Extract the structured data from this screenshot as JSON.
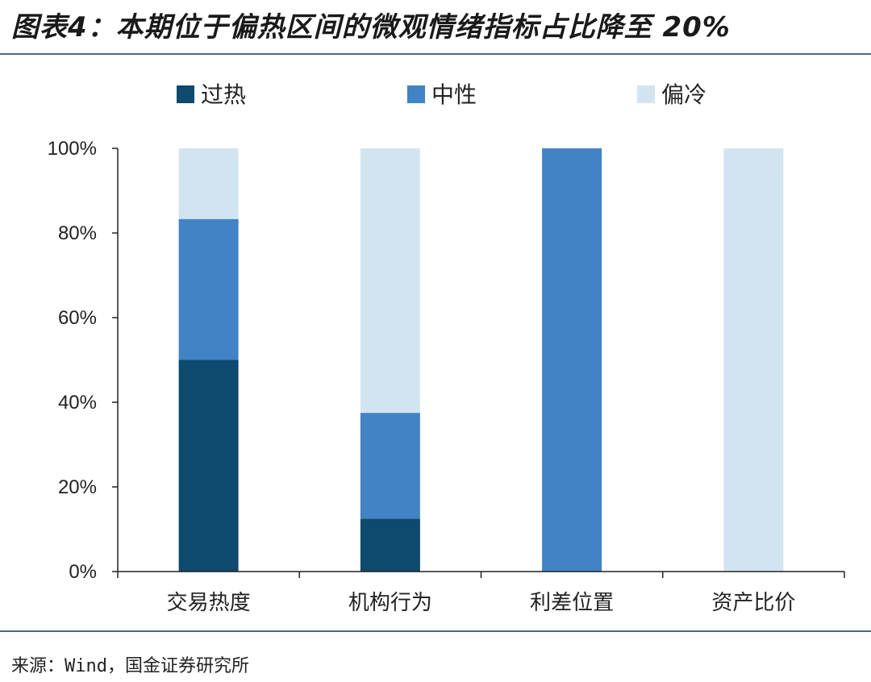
{
  "header": {
    "title": "图表4：本期位于偏热区间的微观情绪指标占比降至 20%"
  },
  "footer": {
    "source": "来源：Wind，国金证券研究所"
  },
  "chart_data": {
    "type": "bar",
    "stacked": true,
    "categories": [
      "交易热度",
      "机构行为",
      "利差位置",
      "资产比价"
    ],
    "series": [
      {
        "name": "过热",
        "color": "#0e4a6e",
        "values": [
          50,
          12.5,
          0,
          0
        ]
      },
      {
        "name": "中性",
        "color": "#4183c4",
        "values": [
          33.3,
          25,
          100,
          0
        ]
      },
      {
        "name": "偏冷",
        "color": "#d3e4f1",
        "values": [
          16.7,
          62.5,
          0,
          100
        ]
      }
    ],
    "yticks": [
      "0%",
      "20%",
      "40%",
      "60%",
      "80%",
      "100%"
    ],
    "ylim": [
      0,
      100
    ],
    "legend_position": "top",
    "grid": false
  }
}
